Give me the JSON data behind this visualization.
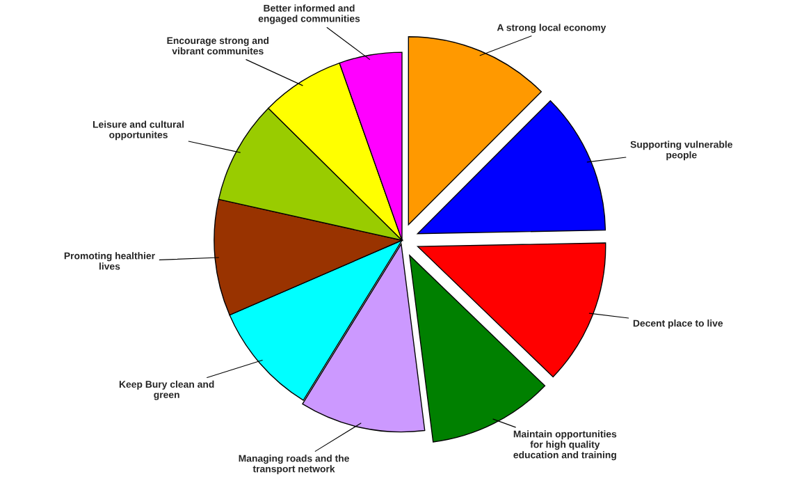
{
  "chart_data": {
    "type": "pie",
    "categories": [
      "A strong local economy",
      "Supporting vulnerable\npeople",
      "Decent place to live",
      "Maintain opportunities\nfor high quality\neducation and training",
      "Managing roads and the\ntransport network",
      "Keep Bury clean and\ngreen",
      "Promoting healthier\nlives",
      "Leisure and cultural\nopportunites",
      "Encourage strong and\nvibrant communites",
      "Better informed and\nengaged communities"
    ],
    "values": [
      12.5,
      12.2,
      12.5,
      10.8,
      10.8,
      9.7,
      10.0,
      8.9,
      7.2,
      5.4
    ],
    "colors": [
      "#ff9900",
      "#0000ff",
      "#ff0000",
      "#008000",
      "#cc99ff",
      "#00ffff",
      "#993300",
      "#99cc00",
      "#ffff00",
      "#ff00ff"
    ]
  }
}
